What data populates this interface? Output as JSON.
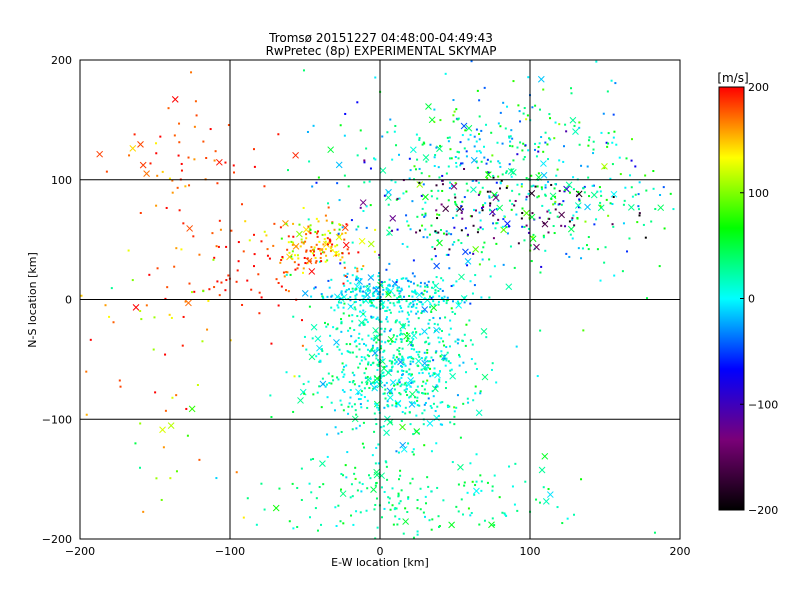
{
  "chart_data": {
    "type": "scatter",
    "title": "Tromsø 20151227 04:48:00-04:49:43",
    "subtitle": "RwPretec (8p) EXPERIMENTAL SKYMAP",
    "xlabel": "E-W location [km]",
    "ylabel": "N-S location [km]",
    "xlim": [
      -200,
      200
    ],
    "ylim": [
      -200,
      200
    ],
    "xticks": [
      -200,
      -100,
      0,
      100,
      200
    ],
    "yticks": [
      -200,
      -100,
      0,
      100,
      200
    ],
    "xtick_labels": [
      "−200",
      "−100",
      "0",
      "100",
      "200"
    ],
    "ytick_labels": [
      "−200",
      "−100",
      "0",
      "100",
      "200"
    ],
    "grid": true,
    "colorbar": {
      "label": "[m/s]",
      "range": [
        -200,
        200
      ],
      "ticks": [
        200,
        100,
        0,
        -100,
        -200
      ],
      "tick_labels": [
        "200",
        "100",
        "0",
        "−100",
        "−200"
      ],
      "colors": [
        "#000000",
        "#7a0078",
        "#0000ff",
        "#00ffff",
        "#00ff00",
        "#ffff00",
        "#ff0000"
      ]
    },
    "markers": [
      "dot",
      "x"
    ],
    "clusters": [
      {
        "x": 10,
        "y": -55,
        "sx": 28,
        "sy": 32,
        "v": 15,
        "sv": 22
      },
      {
        "x": 5,
        "y": 5,
        "sx": 22,
        "sy": 9,
        "v": 0,
        "sv": 20
      },
      {
        "x": -40,
        "y": 45,
        "sx": 14,
        "sy": 12,
        "v": 150,
        "sv": 40
      },
      {
        "x": 70,
        "y": 100,
        "sx": 48,
        "sy": 42,
        "v": 10,
        "sv": 45
      },
      {
        "x": 80,
        "y": 75,
        "sx": 45,
        "sy": 18,
        "v": -150,
        "sv": 40
      },
      {
        "x": -130,
        "y": 120,
        "sx": 38,
        "sy": 28,
        "v": 185,
        "sv": 20
      },
      {
        "x": -90,
        "y": 30,
        "sx": 30,
        "sy": 25,
        "v": 190,
        "sv": 15
      },
      {
        "x": 20,
        "y": -170,
        "sx": 50,
        "sy": 18,
        "v": 30,
        "sv": 20
      },
      {
        "x": 150,
        "y": 80,
        "sx": 30,
        "sy": 30,
        "v": 40,
        "sv": 30
      },
      {
        "x": -150,
        "y": -60,
        "sx": 30,
        "sy": 60,
        "v": 150,
        "sv": 50
      }
    ]
  }
}
